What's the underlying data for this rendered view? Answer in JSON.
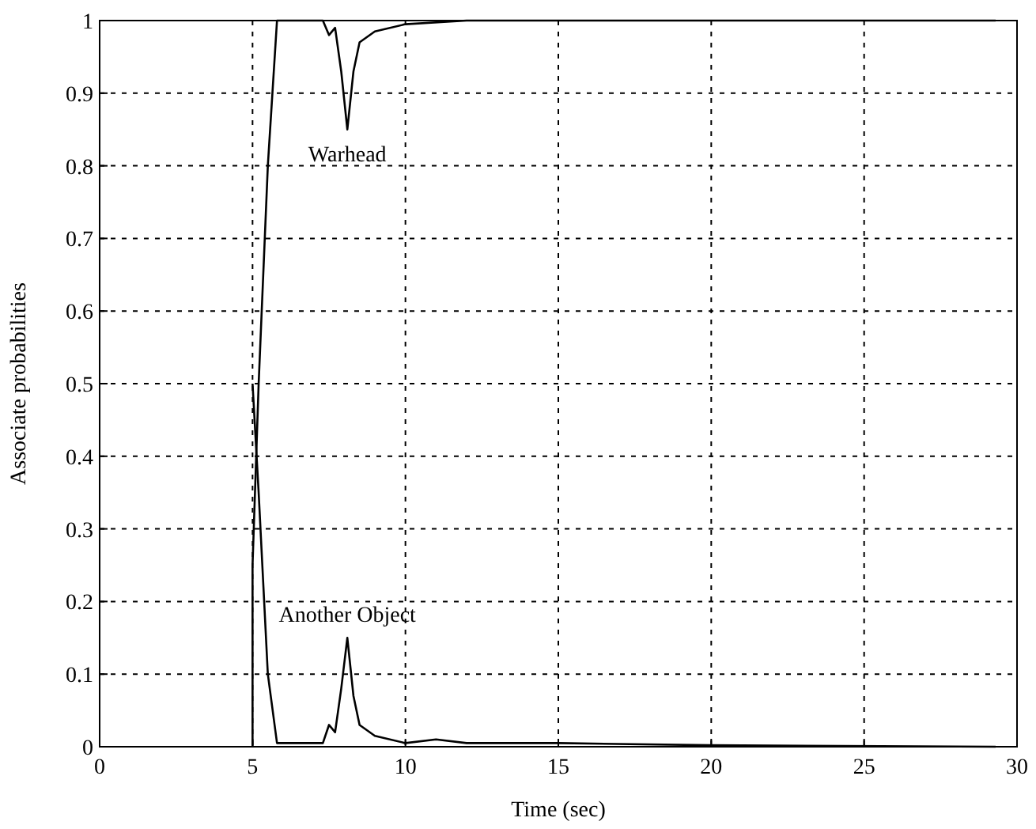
{
  "chart_data": {
    "type": "line",
    "xlabel": "Time (sec)",
    "ylabel": "Associate probabilities",
    "xlim": [
      0,
      30
    ],
    "ylim": [
      0,
      1
    ],
    "xticks": [
      0,
      5,
      10,
      15,
      20,
      25,
      30
    ],
    "yticks": [
      0,
      0.1,
      0.2,
      0.3,
      0.4,
      0.5,
      0.6,
      0.7,
      0.8,
      0.9,
      1
    ],
    "grid": true,
    "line_style": "solid",
    "marker": "none",
    "annotations": [
      "Warhead",
      "Another Object"
    ],
    "series": [
      {
        "color": "#000000",
        "x": [
          5,
          5,
          5.2,
          5.5,
          5.8,
          6.5,
          7.3,
          7.5,
          7.7,
          7.9,
          8.1,
          8.3,
          8.5,
          9,
          10,
          12,
          29.3
        ],
        "values": [
          0,
          0.25,
          0.5,
          0.8,
          1,
          1,
          1,
          0.98,
          0.99,
          0.93,
          0.85,
          0.93,
          0.97,
          0.985,
          0.995,
          1,
          1
        ]
      },
      {
        "color": "#000000",
        "x": [
          5,
          5.2,
          5.5,
          5.8,
          7.3,
          7.5,
          7.7,
          7.9,
          8.1,
          8.3,
          8.5,
          9,
          10,
          11,
          12,
          15,
          20,
          29.3
        ],
        "values": [
          0.5,
          0.35,
          0.1,
          0.005,
          0.005,
          0.03,
          0.02,
          0.08,
          0.15,
          0.07,
          0.03,
          0.015,
          0.005,
          0.01,
          0.005,
          0.005,
          0.002,
          0
        ]
      }
    ]
  }
}
